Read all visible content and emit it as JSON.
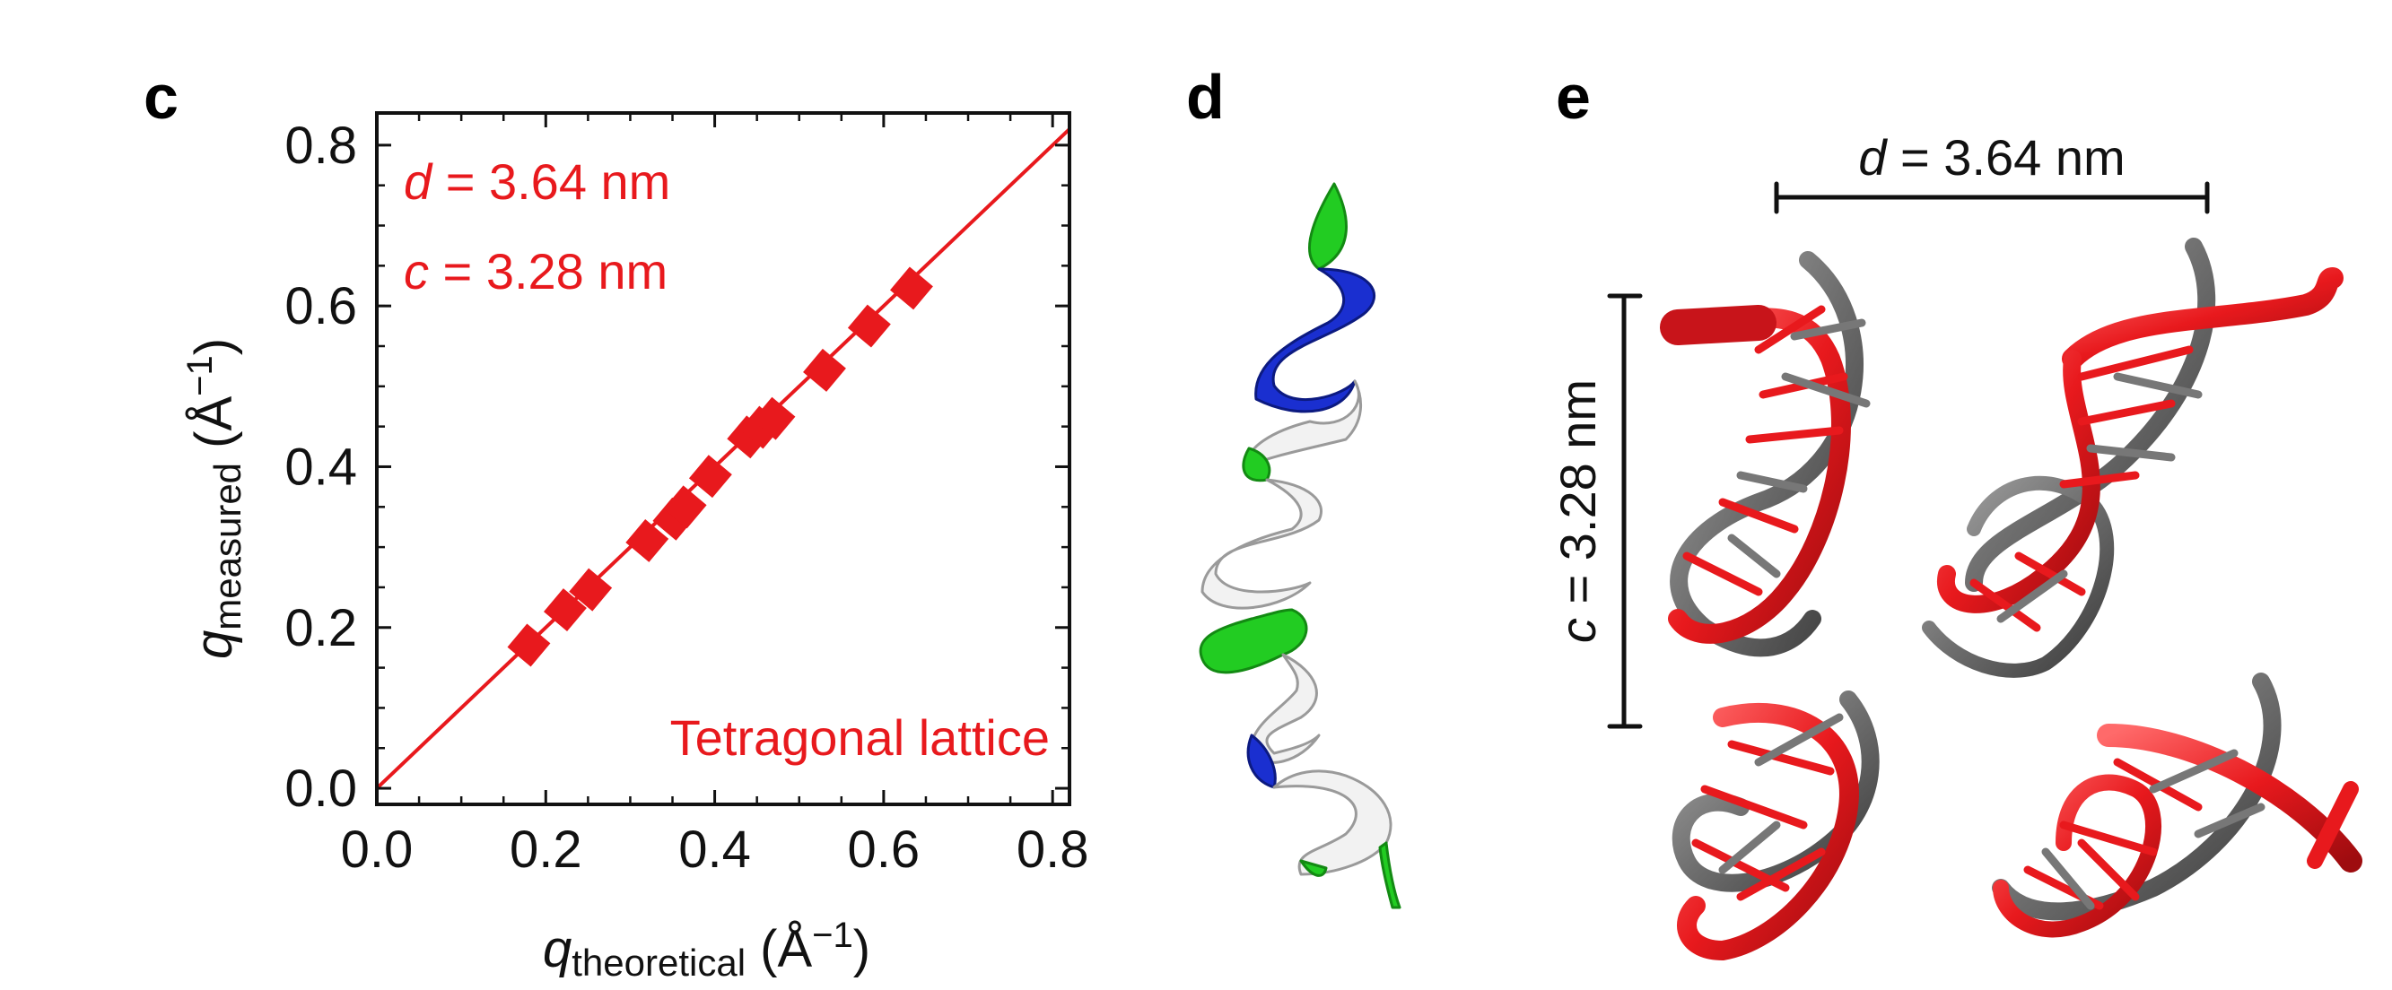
{
  "panels": {
    "c": "c",
    "d": "d",
    "e": "e"
  },
  "chart_data": {
    "type": "scatter",
    "xlim": [
      0.0,
      0.82
    ],
    "ylim": [
      -0.02,
      0.84
    ],
    "xticks": [
      "0.0",
      "0.2",
      "0.4",
      "0.6",
      "0.8"
    ],
    "yticks": [
      "0.0",
      "0.2",
      "0.4",
      "0.6",
      "0.8"
    ],
    "xlabel": {
      "symbol": "q",
      "subscript": "theoretical",
      "unit": " (Å",
      "exp": "−1",
      "close": ")"
    },
    "ylabel": {
      "symbol": "q",
      "subscript": "measured",
      "unit": " (Å",
      "exp": "−1",
      "close": ")"
    },
    "annotations": {
      "d_var": "d",
      "d_rest": " = 3.64 nm",
      "c_var": "c",
      "c_rest": " = 3.28 nm",
      "lattice": "Tetragonal lattice"
    },
    "fit_line": {
      "x": [
        0.0,
        0.82
      ],
      "y": [
        0.0,
        0.82
      ]
    },
    "series": [
      {
        "marker": "square-diamond",
        "color": "#e8191d",
        "x": [
          0.18,
          0.223,
          0.253,
          0.32,
          0.352,
          0.365,
          0.395,
          0.44,
          0.455,
          0.47,
          0.53,
          0.583,
          0.633
        ],
        "y": [
          0.178,
          0.222,
          0.247,
          0.308,
          0.335,
          0.35,
          0.388,
          0.437,
          0.449,
          0.46,
          0.52,
          0.575,
          0.622
        ]
      }
    ],
    "grid": false,
    "line_color": "#e8191d"
  },
  "panel_e": {
    "d_var": "d",
    "d_rest": " = 3.64 nm",
    "c_var": "c",
    "c_rest": " = 3.28 nm"
  },
  "colors": {
    "red": "#e8191d",
    "gray": "#6e6e6e",
    "green": "#22cc22",
    "blue": "#1a2fd0",
    "white": "#f2f2f2"
  }
}
